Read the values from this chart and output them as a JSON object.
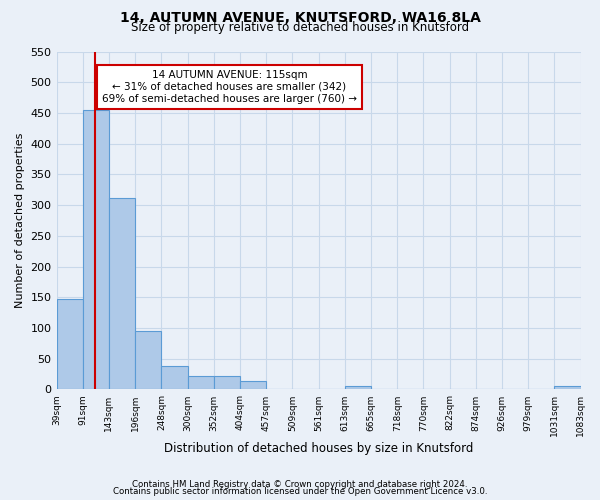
{
  "title": "14, AUTUMN AVENUE, KNUTSFORD, WA16 8LA",
  "subtitle": "Size of property relative to detached houses in Knutsford",
  "xlabel": "Distribution of detached houses by size in Knutsford",
  "ylabel": "Number of detached properties",
  "bar_edges": [
    39,
    91,
    143,
    196,
    248,
    300,
    352,
    404,
    457,
    509,
    561,
    613,
    665,
    718,
    770,
    822,
    874,
    926,
    979,
    1031,
    1083
  ],
  "bar_heights": [
    148,
    455,
    311,
    95,
    38,
    22,
    22,
    13,
    0,
    0,
    0,
    5,
    0,
    0,
    0,
    0,
    0,
    0,
    0,
    6
  ],
  "bar_color": "#aec9e8",
  "bar_edgecolor": "#5b9bd5",
  "property_line_x": 115,
  "property_line_color": "#cc0000",
  "annotation_title": "14 AUTUMN AVENUE: 115sqm",
  "annotation_line1": "← 31% of detached houses are smaller (342)",
  "annotation_line2": "69% of semi-detached houses are larger (760) →",
  "annotation_box_color": "#ffffff",
  "annotation_box_edgecolor": "#cc0000",
  "ylim": [
    0,
    550
  ],
  "yticks": [
    0,
    50,
    100,
    150,
    200,
    250,
    300,
    350,
    400,
    450,
    500,
    550
  ],
  "tick_labels": [
    "39sqm",
    "91sqm",
    "143sqm",
    "196sqm",
    "248sqm",
    "300sqm",
    "352sqm",
    "404sqm",
    "457sqm",
    "509sqm",
    "561sqm",
    "613sqm",
    "665sqm",
    "718sqm",
    "770sqm",
    "822sqm",
    "874sqm",
    "926sqm",
    "979sqm",
    "1031sqm",
    "1083sqm"
  ],
  "footer_line1": "Contains HM Land Registry data © Crown copyright and database right 2024.",
  "footer_line2": "Contains public sector information licensed under the Open Government Licence v3.0.",
  "background_color": "#eaf0f8",
  "grid_color": "#c8d8ea"
}
